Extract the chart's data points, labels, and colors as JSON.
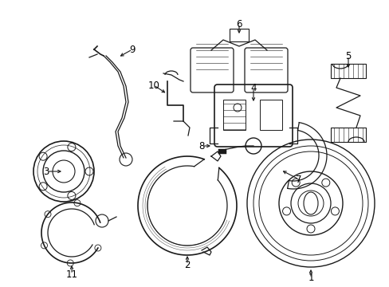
{
  "background_color": "#ffffff",
  "line_color": "#1a1a1a",
  "fig_width": 4.89,
  "fig_height": 3.6,
  "dpi": 100,
  "label_fontsize": 8.5
}
